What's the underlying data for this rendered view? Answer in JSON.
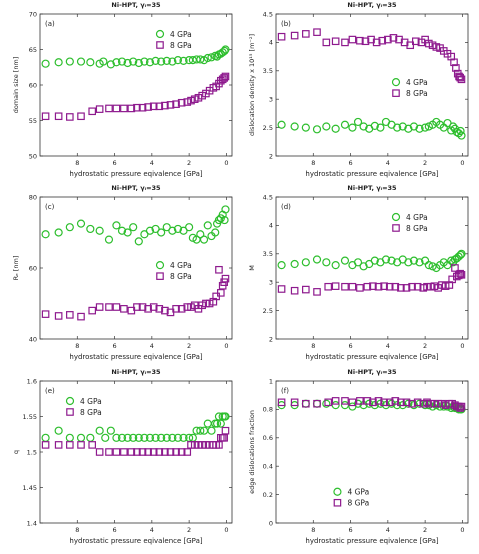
{
  "figure": {
    "colors": {
      "4gpa": "#2dbe2d",
      "8gpa": "#8e1a8e",
      "axis": "#333333",
      "text": "#222222"
    }
  },
  "chart_data": [
    {
      "id": "a",
      "type": "scatter",
      "title": "Ni-HPT, γᵢ=35",
      "panel_label": "(a)",
      "xlabel": "hydrostatic pressure eqivalence [GPa]",
      "ylabel": "domain size [nm]",
      "xlim": [
        10,
        -0.3
      ],
      "ylim": [
        50,
        70
      ],
      "xticks": [
        8,
        6,
        4,
        2,
        0
      ],
      "yticks": [
        50,
        55,
        60,
        65,
        70
      ],
      "grid": false,
      "legend": "top-right",
      "series": [
        {
          "name": "4 GPa",
          "marker": "circle",
          "x": [
            9.7,
            9.0,
            8.4,
            7.8,
            7.3,
            6.8,
            6.6,
            6.2,
            5.9,
            5.6,
            5.3,
            5.0,
            4.7,
            4.4,
            4.1,
            3.8,
            3.5,
            3.2,
            2.9,
            2.6,
            2.3,
            2.0,
            1.8,
            1.6,
            1.4,
            1.2,
            1.0,
            0.8,
            0.6,
            0.5,
            0.4,
            0.3,
            0.2,
            0.1,
            0.05
          ],
          "y": [
            63.0,
            63.2,
            63.3,
            63.3,
            63.2,
            63.0,
            63.3,
            62.9,
            63.2,
            63.3,
            63.1,
            63.3,
            63.1,
            63.3,
            63.2,
            63.4,
            63.3,
            63.4,
            63.3,
            63.5,
            63.4,
            63.5,
            63.5,
            63.6,
            63.6,
            63.5,
            63.8,
            63.9,
            64.1,
            64.0,
            64.3,
            64.4,
            64.6,
            64.8,
            65.0
          ]
        },
        {
          "name": "8 GPa",
          "marker": "square",
          "x": [
            9.7,
            9.0,
            8.4,
            7.8,
            7.2,
            6.8,
            6.3,
            5.9,
            5.5,
            5.1,
            4.8,
            4.5,
            4.2,
            3.9,
            3.6,
            3.3,
            3.0,
            2.7,
            2.4,
            2.1,
            1.9,
            1.7,
            1.5,
            1.3,
            1.1,
            0.9,
            0.7,
            0.55,
            0.4,
            0.3,
            0.2,
            0.12,
            0.05
          ],
          "y": [
            55.6,
            55.6,
            55.5,
            55.6,
            56.3,
            56.6,
            56.7,
            56.7,
            56.7,
            56.7,
            56.8,
            56.8,
            56.9,
            57.0,
            57.0,
            57.1,
            57.2,
            57.3,
            57.5,
            57.6,
            57.8,
            58.0,
            58.2,
            58.5,
            58.8,
            59.2,
            59.6,
            59.8,
            60.2,
            60.6,
            60.8,
            61.0,
            61.2
          ]
        }
      ]
    },
    {
      "id": "b",
      "type": "scatter",
      "title": "Ni-HPT, γᵢ=35",
      "panel_label": "(b)",
      "xlabel": "hydrostatic pressure eqivalence [GPa]",
      "ylabel": "dislocation density x 10¹⁵ [m⁻²]",
      "xlim": [
        10,
        -0.3
      ],
      "ylim": [
        2,
        4.5
      ],
      "xticks": [
        8,
        6,
        4,
        2,
        0
      ],
      "yticks": [
        2,
        2.5,
        3,
        3.5,
        4,
        4.5
      ],
      "grid": false,
      "legend": "center-right",
      "series": [
        {
          "name": "4 GPa",
          "marker": "circle",
          "x": [
            9.7,
            9.0,
            8.4,
            7.8,
            7.3,
            6.8,
            6.3,
            5.9,
            5.6,
            5.3,
            5.0,
            4.7,
            4.4,
            4.1,
            3.8,
            3.5,
            3.2,
            2.9,
            2.6,
            2.3,
            2.0,
            1.8,
            1.6,
            1.4,
            1.2,
            1.0,
            0.8,
            0.6,
            0.5,
            0.4,
            0.3,
            0.2,
            0.1,
            0.05
          ],
          "y": [
            2.55,
            2.52,
            2.5,
            2.47,
            2.52,
            2.48,
            2.55,
            2.5,
            2.6,
            2.52,
            2.48,
            2.53,
            2.5,
            2.6,
            2.55,
            2.5,
            2.52,
            2.48,
            2.52,
            2.48,
            2.5,
            2.52,
            2.55,
            2.6,
            2.55,
            2.5,
            2.58,
            2.45,
            2.52,
            2.48,
            2.42,
            2.4,
            2.44,
            2.36
          ]
        },
        {
          "name": "8 GPa",
          "marker": "square",
          "x": [
            9.7,
            9.0,
            8.4,
            7.8,
            7.3,
            6.8,
            6.3,
            5.9,
            5.5,
            5.2,
            4.9,
            4.6,
            4.3,
            4.0,
            3.7,
            3.4,
            3.1,
            2.8,
            2.5,
            2.2,
            2.0,
            1.8,
            1.6,
            1.4,
            1.2,
            1.0,
            0.8,
            0.6,
            0.45,
            0.35,
            0.25,
            0.18,
            0.12,
            0.05
          ],
          "y": [
            4.1,
            4.12,
            4.15,
            4.18,
            4.0,
            4.02,
            4.0,
            4.05,
            4.03,
            4.02,
            4.05,
            4.0,
            4.03,
            4.05,
            4.08,
            4.05,
            4.0,
            3.95,
            4.02,
            4.0,
            4.05,
            3.98,
            3.95,
            3.92,
            3.9,
            3.85,
            3.8,
            3.75,
            3.65,
            3.55,
            3.45,
            3.4,
            3.38,
            3.35
          ]
        }
      ]
    },
    {
      "id": "c",
      "type": "scatter",
      "title": "Ni-HPT, γᵢ=35",
      "panel_label": "(c)",
      "xlabel": "hydrostatic pressure eqivalence [GPa]",
      "ylabel": "Rₑ [nm]",
      "xlim": [
        10,
        -0.3
      ],
      "ylim": [
        40,
        80
      ],
      "xticks": [
        8,
        6,
        4,
        2,
        0
      ],
      "yticks": [
        40,
        60,
        80
      ],
      "grid": false,
      "legend": "center-right",
      "series": [
        {
          "name": "4 GPa",
          "marker": "circle",
          "x": [
            9.7,
            9.0,
            8.4,
            7.8,
            7.3,
            6.8,
            6.3,
            5.9,
            5.6,
            5.3,
            5.0,
            4.7,
            4.4,
            4.1,
            3.8,
            3.5,
            3.2,
            2.9,
            2.6,
            2.3,
            2.0,
            1.8,
            1.6,
            1.4,
            1.2,
            1.0,
            0.8,
            0.6,
            0.5,
            0.4,
            0.3,
            0.2,
            0.1,
            0.05
          ],
          "y": [
            69.5,
            70.0,
            71.5,
            72.5,
            71.0,
            70.5,
            68.0,
            72.0,
            70.5,
            70.0,
            71.5,
            67.5,
            69.5,
            70.5,
            71.0,
            70.0,
            71.5,
            70.5,
            71.0,
            70.5,
            71.5,
            68.5,
            68.0,
            69.5,
            68.0,
            72.0,
            69.0,
            70.0,
            72.5,
            73.5,
            74.0,
            75.0,
            73.5,
            76.5
          ]
        },
        {
          "name": "8 GPa",
          "marker": "square",
          "x": [
            9.7,
            9.0,
            8.4,
            7.8,
            7.2,
            6.8,
            6.3,
            5.9,
            5.5,
            5.1,
            4.8,
            4.5,
            4.2,
            3.9,
            3.6,
            3.3,
            3.0,
            2.7,
            2.4,
            2.1,
            1.9,
            1.7,
            1.5,
            1.3,
            1.1,
            0.9,
            0.7,
            0.55,
            0.4,
            0.3,
            0.2,
            0.12,
            0.05
          ],
          "y": [
            47.0,
            46.5,
            46.8,
            46.3,
            48.0,
            49.0,
            49.0,
            49.0,
            48.5,
            48.0,
            49.0,
            49.0,
            48.5,
            49.0,
            48.5,
            48.0,
            47.5,
            48.5,
            48.5,
            49.0,
            49.0,
            49.5,
            48.5,
            49.5,
            50.0,
            50.0,
            50.5,
            52.0,
            59.5,
            53.0,
            55.0,
            56.0,
            57.0
          ]
        }
      ]
    },
    {
      "id": "d",
      "type": "scatter",
      "title": "Ni-HPT, γᵢ=35",
      "panel_label": "(d)",
      "xlabel": "hydrostatic pressure eqivalence [GPa]",
      "ylabel": "M",
      "xlim": [
        10,
        -0.3
      ],
      "ylim": [
        2,
        4.5
      ],
      "xticks": [
        8,
        6,
        4,
        2,
        0
      ],
      "yticks": [
        2,
        2.5,
        3,
        3.5,
        4,
        4.5
      ],
      "grid": false,
      "legend": "top-right",
      "series": [
        {
          "name": "4 GPa",
          "marker": "circle",
          "x": [
            9.7,
            9.0,
            8.4,
            7.8,
            7.3,
            6.8,
            6.3,
            5.9,
            5.6,
            5.3,
            5.0,
            4.7,
            4.4,
            4.1,
            3.8,
            3.5,
            3.2,
            2.9,
            2.6,
            2.3,
            2.0,
            1.8,
            1.6,
            1.4,
            1.2,
            1.0,
            0.8,
            0.6,
            0.5,
            0.4,
            0.3,
            0.2,
            0.1,
            0.05
          ],
          "y": [
            3.3,
            3.32,
            3.35,
            3.4,
            3.35,
            3.3,
            3.38,
            3.3,
            3.35,
            3.28,
            3.32,
            3.38,
            3.35,
            3.4,
            3.38,
            3.35,
            3.4,
            3.35,
            3.38,
            3.35,
            3.38,
            3.3,
            3.28,
            3.25,
            3.3,
            3.35,
            3.3,
            3.38,
            3.35,
            3.4,
            3.42,
            3.45,
            3.48,
            3.5
          ]
        },
        {
          "name": "8 GPa",
          "marker": "square",
          "x": [
            9.7,
            9.0,
            8.4,
            7.8,
            7.2,
            6.8,
            6.3,
            5.9,
            5.5,
            5.1,
            4.8,
            4.5,
            4.2,
            3.9,
            3.6,
            3.3,
            3.0,
            2.7,
            2.4,
            2.1,
            1.9,
            1.7,
            1.5,
            1.3,
            1.1,
            0.9,
            0.7,
            0.55,
            0.4,
            0.3,
            0.2,
            0.12,
            0.05
          ],
          "y": [
            2.88,
            2.85,
            2.87,
            2.83,
            2.92,
            2.93,
            2.92,
            2.92,
            2.9,
            2.92,
            2.93,
            2.92,
            2.93,
            2.92,
            2.92,
            2.9,
            2.9,
            2.92,
            2.92,
            2.9,
            2.92,
            2.92,
            2.93,
            2.9,
            2.95,
            2.93,
            2.95,
            3.05,
            3.25,
            3.1,
            3.12,
            3.15,
            3.13
          ]
        }
      ]
    },
    {
      "id": "e",
      "type": "scatter",
      "title": "Ni-HPT, γᵢ=35",
      "panel_label": "(e)",
      "xlabel": "hydrostatic pressure eqivalence [GPa]",
      "ylabel": "q",
      "xlim": [
        10,
        -0.3
      ],
      "ylim": [
        1.4,
        1.6
      ],
      "xticks": [
        8,
        6,
        4,
        2,
        0
      ],
      "yticks": [
        1.4,
        1.45,
        1.5,
        1.55,
        1.6
      ],
      "grid": false,
      "legend": "top-left",
      "series": [
        {
          "name": "4 GPa",
          "marker": "circle",
          "x": [
            9.7,
            9.0,
            8.4,
            7.8,
            7.3,
            6.8,
            6.5,
            6.2,
            5.9,
            5.6,
            5.3,
            5.0,
            4.7,
            4.4,
            4.1,
            3.8,
            3.5,
            3.2,
            2.9,
            2.6,
            2.3,
            2.0,
            1.8,
            1.6,
            1.4,
            1.2,
            1.0,
            0.8,
            0.6,
            0.5,
            0.4,
            0.3,
            0.2,
            0.1,
            0.05
          ],
          "y": [
            1.52,
            1.53,
            1.52,
            1.52,
            1.52,
            1.53,
            1.52,
            1.53,
            1.52,
            1.52,
            1.52,
            1.52,
            1.52,
            1.52,
            1.52,
            1.52,
            1.52,
            1.52,
            1.52,
            1.52,
            1.52,
            1.52,
            1.52,
            1.53,
            1.53,
            1.53,
            1.54,
            1.53,
            1.54,
            1.54,
            1.55,
            1.54,
            1.55,
            1.55,
            1.55
          ]
        },
        {
          "name": "8 GPa",
          "marker": "square",
          "x": [
            9.7,
            9.0,
            8.4,
            7.8,
            7.2,
            6.8,
            6.3,
            5.9,
            5.5,
            5.1,
            4.8,
            4.5,
            4.2,
            3.9,
            3.6,
            3.3,
            3.0,
            2.7,
            2.4,
            2.1,
            1.9,
            1.7,
            1.5,
            1.3,
            1.1,
            0.9,
            0.7,
            0.55,
            0.4,
            0.3,
            0.2,
            0.12,
            0.05
          ],
          "y": [
            1.51,
            1.51,
            1.51,
            1.51,
            1.51,
            1.5,
            1.5,
            1.5,
            1.5,
            1.5,
            1.5,
            1.5,
            1.5,
            1.5,
            1.5,
            1.5,
            1.5,
            1.5,
            1.5,
            1.5,
            1.51,
            1.51,
            1.51,
            1.51,
            1.51,
            1.51,
            1.51,
            1.51,
            1.51,
            1.52,
            1.52,
            1.52,
            1.53
          ]
        }
      ]
    },
    {
      "id": "f",
      "type": "scatter",
      "title": "Ni-HPT, γᵢ=35",
      "panel_label": "(f)",
      "xlabel": "hydrostatic pressure eqivalence [GPa]",
      "ylabel": "edge dislocations fraction",
      "xlim": [
        10,
        -0.3
      ],
      "ylim": [
        0,
        1
      ],
      "xticks": [
        8,
        6,
        4,
        2,
        0
      ],
      "yticks": [
        0,
        0.2,
        0.4,
        0.6,
        0.8,
        1
      ],
      "grid": false,
      "legend": "bottom-center",
      "series": [
        {
          "name": "4 GPa",
          "marker": "circle",
          "x": [
            9.7,
            9.0,
            8.4,
            7.8,
            7.3,
            6.8,
            6.3,
            5.9,
            5.6,
            5.3,
            5.0,
            4.7,
            4.4,
            4.1,
            3.8,
            3.5,
            3.2,
            2.9,
            2.6,
            2.3,
            2.0,
            1.8,
            1.6,
            1.4,
            1.2,
            1.0,
            0.8,
            0.6,
            0.5,
            0.4,
            0.3,
            0.2,
            0.1,
            0.05
          ],
          "y": [
            0.83,
            0.83,
            0.84,
            0.84,
            0.84,
            0.83,
            0.83,
            0.82,
            0.84,
            0.83,
            0.84,
            0.83,
            0.84,
            0.83,
            0.84,
            0.83,
            0.83,
            0.84,
            0.83,
            0.84,
            0.83,
            0.83,
            0.82,
            0.83,
            0.82,
            0.82,
            0.82,
            0.81,
            0.82,
            0.81,
            0.81,
            0.8,
            0.8,
            0.8
          ]
        },
        {
          "name": "8 GPa",
          "marker": "square",
          "x": [
            9.7,
            9.0,
            8.4,
            7.8,
            7.2,
            6.8,
            6.3,
            5.9,
            5.5,
            5.1,
            4.8,
            4.5,
            4.2,
            3.9,
            3.6,
            3.3,
            3.0,
            2.7,
            2.4,
            2.1,
            1.9,
            1.7,
            1.5,
            1.3,
            1.1,
            0.9,
            0.7,
            0.55,
            0.4,
            0.3,
            0.2,
            0.12,
            0.05
          ],
          "y": [
            0.85,
            0.85,
            0.84,
            0.84,
            0.85,
            0.86,
            0.86,
            0.85,
            0.86,
            0.86,
            0.85,
            0.86,
            0.85,
            0.85,
            0.86,
            0.85,
            0.85,
            0.84,
            0.85,
            0.84,
            0.85,
            0.84,
            0.84,
            0.84,
            0.84,
            0.83,
            0.84,
            0.84,
            0.83,
            0.82,
            0.82,
            0.81,
            0.82
          ]
        }
      ]
    }
  ]
}
